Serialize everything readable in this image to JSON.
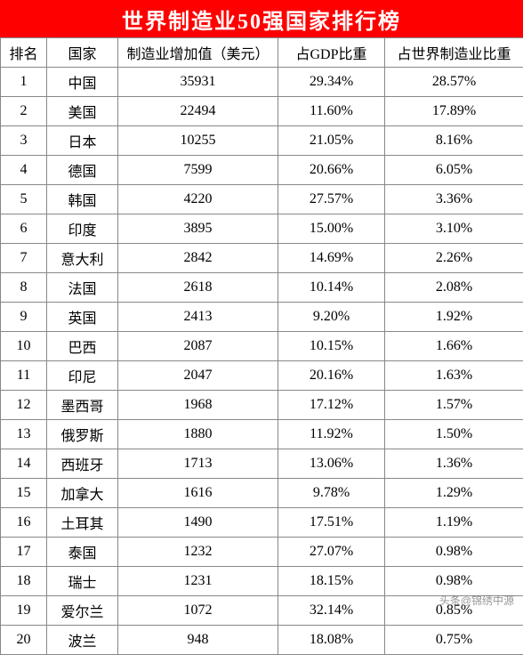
{
  "title": "世界制造业50强国家排行榜",
  "title_bg": "#ff0000",
  "title_color": "#ffffff",
  "columns": [
    "排名",
    "国家",
    "制造业增加值（美元）",
    "占GDP比重",
    "占世界制造业比重"
  ],
  "col_name": [
    "rank",
    "country",
    "value",
    "gdp",
    "world"
  ],
  "rows": [
    {
      "rank": "1",
      "country": "中国",
      "value": "35931",
      "gdp": "29.34%",
      "world": "28.57%"
    },
    {
      "rank": "2",
      "country": "美国",
      "value": "22494",
      "gdp": "11.60%",
      "world": "17.89%"
    },
    {
      "rank": "3",
      "country": "日本",
      "value": "10255",
      "gdp": "21.05%",
      "world": "8.16%"
    },
    {
      "rank": "4",
      "country": "德国",
      "value": "7599",
      "gdp": "20.66%",
      "world": "6.05%"
    },
    {
      "rank": "5",
      "country": "韩国",
      "value": "4220",
      "gdp": "27.57%",
      "world": "3.36%"
    },
    {
      "rank": "6",
      "country": "印度",
      "value": "3895",
      "gdp": "15.00%",
      "world": "3.10%"
    },
    {
      "rank": "7",
      "country": "意大利",
      "value": "2842",
      "gdp": "14.69%",
      "world": "2.26%"
    },
    {
      "rank": "8",
      "country": "法国",
      "value": "2618",
      "gdp": "10.14%",
      "world": "2.08%"
    },
    {
      "rank": "9",
      "country": "英国",
      "value": "2413",
      "gdp": "9.20%",
      "world": "1.92%"
    },
    {
      "rank": "10",
      "country": "巴西",
      "value": "2087",
      "gdp": "10.15%",
      "world": "1.66%"
    },
    {
      "rank": "11",
      "country": "印尼",
      "value": "2047",
      "gdp": "20.16%",
      "world": "1.63%"
    },
    {
      "rank": "12",
      "country": "墨西哥",
      "value": "1968",
      "gdp": "17.12%",
      "world": "1.57%"
    },
    {
      "rank": "13",
      "country": "俄罗斯",
      "value": "1880",
      "gdp": "11.92%",
      "world": "1.50%"
    },
    {
      "rank": "14",
      "country": "西班牙",
      "value": "1713",
      "gdp": "13.06%",
      "world": "1.36%"
    },
    {
      "rank": "15",
      "country": "加拿大",
      "value": "1616",
      "gdp": "9.78%",
      "world": "1.29%"
    },
    {
      "rank": "16",
      "country": "土耳其",
      "value": "1490",
      "gdp": "17.51%",
      "world": "1.19%"
    },
    {
      "rank": "17",
      "country": "泰国",
      "value": "1232",
      "gdp": "27.07%",
      "world": "0.98%"
    },
    {
      "rank": "18",
      "country": "瑞士",
      "value": "1231",
      "gdp": "18.15%",
      "world": "0.98%"
    },
    {
      "rank": "19",
      "country": "爱尔兰",
      "value": "1072",
      "gdp": "32.14%",
      "world": "0.85%"
    },
    {
      "rank": "20",
      "country": "波兰",
      "value": "948",
      "gdp": "18.08%",
      "world": "0.75%"
    }
  ],
  "watermark": "头条@锦绣中源"
}
